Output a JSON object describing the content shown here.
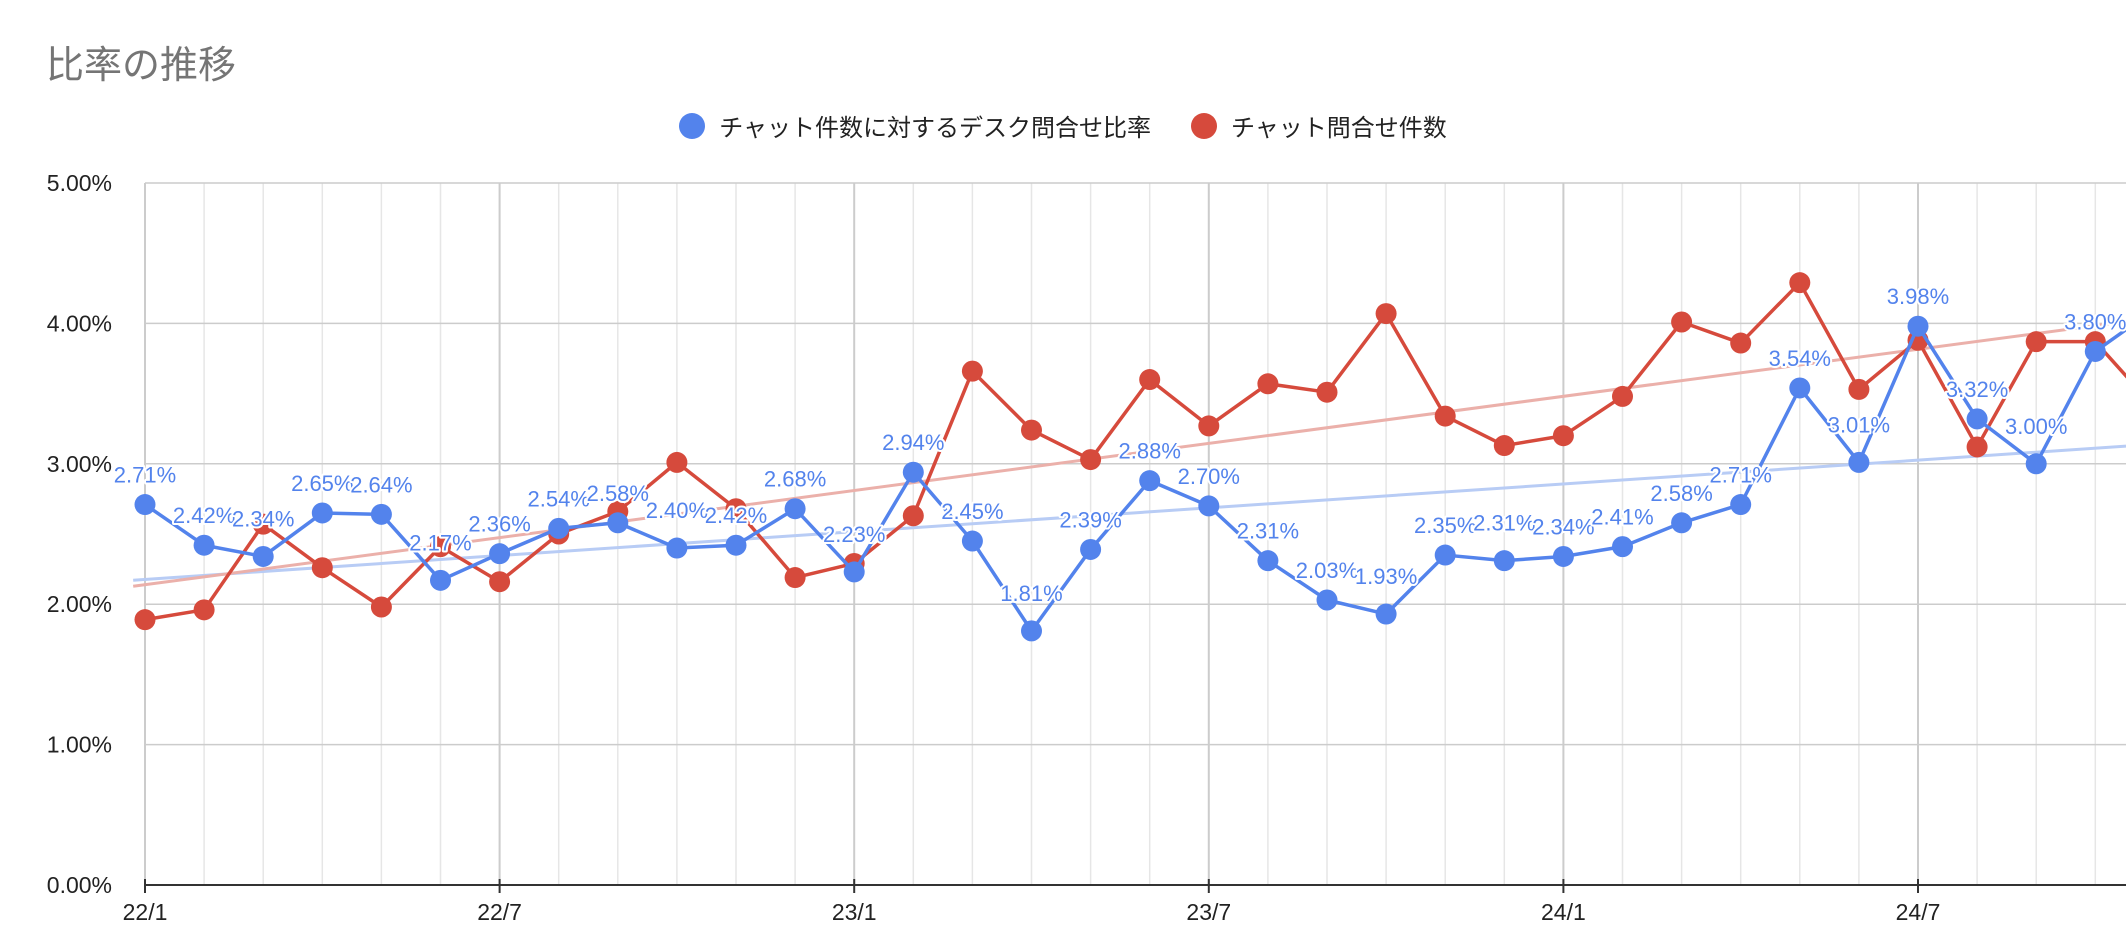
{
  "chart_data": {
    "type": "line",
    "title": "比率の推移",
    "xlabel": "",
    "ylabel": "",
    "ylim": [
      0,
      5
    ],
    "y_ticks": [
      "0.00%",
      "1.00%",
      "2.00%",
      "3.00%",
      "4.00%",
      "5.00%"
    ],
    "x_tick_labels": [
      {
        "index": 0,
        "label": "22/1"
      },
      {
        "index": 6,
        "label": "22/7"
      },
      {
        "index": 12,
        "label": "23/1"
      },
      {
        "index": 18,
        "label": "23/7"
      },
      {
        "index": 24,
        "label": "24/1"
      },
      {
        "index": 30,
        "label": "24/7"
      }
    ],
    "grid": true,
    "legend_position": "top-center",
    "series": [
      {
        "name": "チャット件数に対するデスク問合せ比率",
        "color": "#5383ec",
        "trendline_color": "#b8ccf5",
        "show_labels": true,
        "values": [
          2.71,
          2.42,
          2.34,
          2.65,
          2.64,
          2.17,
          2.36,
          2.54,
          2.58,
          2.4,
          2.42,
          2.68,
          2.23,
          2.94,
          2.45,
          1.81,
          2.39,
          2.88,
          2.7,
          2.31,
          2.03,
          1.93,
          2.35,
          2.31,
          2.34,
          2.41,
          2.58,
          2.71,
          3.54,
          3.01,
          3.98,
          3.32,
          3.0,
          3.8,
          4.1
        ],
        "labels": [
          "2.71%",
          "2.42%",
          "2.34%",
          "2.65%",
          "2.64%",
          "2.17%",
          "2.36%",
          "2.54%",
          "2.58%",
          "2.40%",
          "2.42%",
          "2.68%",
          "2.23%",
          "2.94%",
          "2.45%",
          "1.81%",
          "2.39%",
          "2.88%",
          "2.70%",
          "2.31%",
          "2.03%",
          "1.93%",
          "2.35%",
          "2.31%",
          "2.34%",
          "2.41%",
          "2.58%",
          "2.71%",
          "3.54%",
          "3.01%",
          "3.98%",
          "3.32%",
          "3.00%",
          "3.80%",
          ""
        ]
      },
      {
        "name": "チャット問合せ件数",
        "color": "#d64a3c",
        "trendline_color": "#ebb0aa",
        "show_labels": false,
        "values": [
          1.89,
          1.96,
          2.57,
          2.26,
          1.98,
          2.41,
          2.16,
          2.5,
          2.66,
          3.01,
          2.68,
          2.19,
          2.29,
          2.63,
          3.66,
          3.24,
          3.03,
          3.6,
          3.27,
          3.57,
          3.51,
          4.07,
          3.34,
          3.13,
          3.2,
          3.48,
          4.01,
          3.86,
          4.29,
          3.53,
          3.88,
          3.12,
          3.87,
          3.87,
          3.4
        ]
      }
    ]
  }
}
